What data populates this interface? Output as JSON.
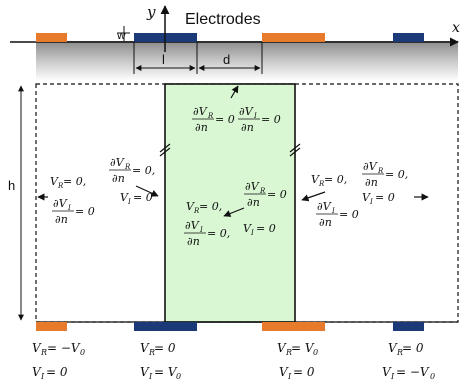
{
  "title": "Electrodes",
  "axis_y": "y",
  "axis_x": "x",
  "label_w": "w",
  "label_l": "l",
  "label_d": "d",
  "label_h": "h",
  "colors": {
    "orange": "#e87a2c",
    "navy": "#1c3a78",
    "green_fill": "#d9f7d3"
  },
  "inner": {
    "top": {
      "l1_num": "∂V",
      "l1_sub": "R",
      "l1_den": "∂n",
      "l1_eq": "= 0",
      "l2_num": "∂V",
      "l2_sub": "I",
      "l2_den": "∂n",
      "l2_eq": "= 0"
    },
    "left_gap": {
      "l1_num": "∂V",
      "l1_sub": "R",
      "l1_den": "∂n",
      "l1_eq": "= 0,",
      "l2_v": "V",
      "l2_sub": "I",
      "l2_eq": "= 0"
    },
    "right_gap": {
      "l1_num": "∂V",
      "l1_sub": "R",
      "l1_den": "∂n",
      "l1_eq": "= 0",
      "l2_num": "∂V",
      "l2_sub": "I",
      "l2_den": "∂n",
      "l2_eq": "= 0"
    },
    "center": {
      "l1_v": "V",
      "l1_sub": "R",
      "l1_eq": "= 0,",
      "l2_num": "∂V",
      "l2_sub": "I",
      "l2_den": "∂n",
      "l2_eq": "= 0,",
      "l3_v": "V",
      "l3_sub": "I",
      "l3_eq": "= 0"
    }
  },
  "outer": {
    "left": {
      "l1_v": "V",
      "l1_sub": "R",
      "l1_eq": "= 0,",
      "l2_num": "∂V",
      "l2_sub": "I",
      "l2_den": "∂n",
      "l2_eq": "= 0"
    },
    "right": {
      "l1_v": "V",
      "l1_sub": "R",
      "l1_eq": "= 0,",
      "l2_num": "∂V",
      "l2_sub": "R",
      "l2_den": "∂n",
      "l2_eq": "= 0,",
      "l3_v": "V",
      "l3_sub": "I",
      "l3_eq": "= 0"
    }
  },
  "bottom": [
    {
      "r_v": "V",
      "r_sub": "R",
      "r_rhs": "= −V",
      "r_rsub": "0",
      "i_v": "V",
      "i_sub": "I",
      "i_rhs": "= 0",
      "i_rsub": ""
    },
    {
      "r_v": "V",
      "r_sub": "R",
      "r_rhs": "= 0",
      "r_rsub": "",
      "i_v": "V",
      "i_sub": "I",
      "i_rhs": "= V",
      "i_rsub": "0"
    },
    {
      "r_v": "V",
      "r_sub": "R",
      "r_rhs": "= V",
      "r_rsub": "0",
      "i_v": "V",
      "i_sub": "I",
      "i_rhs": "= 0",
      "i_rsub": ""
    },
    {
      "r_v": "V",
      "r_sub": "R",
      "r_rhs": "= 0",
      "r_rsub": "",
      "i_v": "V",
      "i_sub": "I",
      "i_rhs": "= −V",
      "i_rsub": "0"
    }
  ]
}
